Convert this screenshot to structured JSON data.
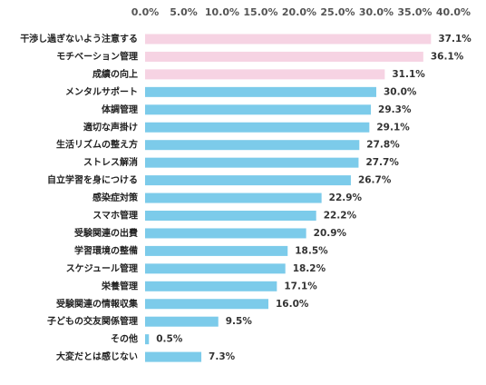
{
  "chart_data": {
    "type": "bar",
    "orientation": "horizontal",
    "title": "",
    "xlabel": "",
    "ylabel": "",
    "xlim": [
      0,
      40
    ],
    "x_ticks": [
      "0.0%",
      "5.0%",
      "10.0%",
      "15.0%",
      "20.0%",
      "25.0%",
      "30.0%",
      "35.0%",
      "40.0%"
    ],
    "x_axis_position": "top",
    "grid": false,
    "legend": "none",
    "colors": {
      "highlight": "#f6d3e3",
      "default": "#7ccbea"
    },
    "categories": [
      "干渉し過ぎないよう注意する",
      "モチベーション管理",
      "成績の向上",
      "メンタルサポート",
      "体調管理",
      "適切な声掛け",
      "生活リズムの整え方",
      "ストレス解消",
      "自立学習を身につける",
      "感染症対策",
      "スマホ管理",
      "受験関連の出費",
      "学習環境の整備",
      "スケジュール管理",
      "栄養管理",
      "受験関連の情報収集",
      "子どもの交友関係管理",
      "その他",
      "大変だとは感じない"
    ],
    "values": [
      37.1,
      36.1,
      31.1,
      30.0,
      29.3,
      29.1,
      27.8,
      27.7,
      26.7,
      22.9,
      22.2,
      20.9,
      18.5,
      18.2,
      17.1,
      16.0,
      9.5,
      0.5,
      7.3
    ],
    "value_labels": [
      "37.1%",
      "36.1%",
      "31.1%",
      "30.0%",
      "29.3%",
      "29.1%",
      "27.8%",
      "27.7%",
      "26.7%",
      "22.9%",
      "22.2%",
      "20.9%",
      "18.5%",
      "18.2%",
      "17.1%",
      "16.0%",
      "9.5%",
      "0.5%",
      "7.3%"
    ],
    "highlighted_count": 3
  }
}
